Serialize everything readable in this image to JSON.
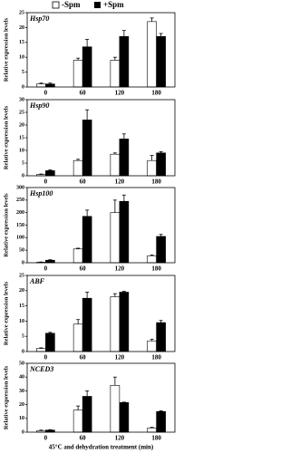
{
  "chart_data": [
    {
      "type": "bar",
      "title": "Hsp70",
      "y_label": "Relative expression levels",
      "categories": [
        "0",
        "60",
        "120",
        "180"
      ],
      "series": [
        {
          "name": "-Spm",
          "color": "#ffffff",
          "values": [
            1,
            9,
            9,
            22
          ],
          "errors": [
            0.3,
            0.7,
            1,
            1.2
          ]
        },
        {
          "name": "+Spm",
          "color": "#000000",
          "values": [
            1,
            13.5,
            17,
            17
          ],
          "errors": [
            0.3,
            2.5,
            2,
            1
          ]
        }
      ],
      "ylim": [
        0,
        25
      ],
      "yticks": [
        0,
        5,
        10,
        15,
        20,
        25
      ]
    },
    {
      "type": "bar",
      "title": "Hsp90",
      "y_label": "Relative expression levels",
      "categories": [
        "0",
        "60",
        "120",
        "180"
      ],
      "series": [
        {
          "color": "#ffffff",
          "values": [
            0.5,
            6,
            8.5,
            6
          ],
          "errors": [
            0.2,
            0.5,
            0.5,
            2
          ]
        },
        {
          "color": "#000000",
          "values": [
            2,
            22,
            14.5,
            9
          ],
          "errors": [
            0.3,
            4,
            2,
            0.5
          ]
        }
      ],
      "ylim": [
        0,
        30
      ],
      "yticks": [
        0,
        5,
        10,
        15,
        20,
        25,
        30
      ]
    },
    {
      "type": "bar",
      "title": "Hsp100",
      "y_label": "Relative expression levels",
      "categories": [
        "0",
        "60",
        "120",
        "180"
      ],
      "series": [
        {
          "color": "#ffffff",
          "values": [
            2,
            55,
            200,
            28
          ],
          "errors": [
            1,
            3,
            50,
            3
          ]
        },
        {
          "color": "#000000",
          "values": [
            10,
            185,
            245,
            105
          ],
          "errors": [
            2,
            25,
            25,
            8
          ]
        }
      ],
      "ylim": [
        0,
        300
      ],
      "yticks": [
        0,
        50,
        100,
        150,
        200,
        250,
        300
      ]
    },
    {
      "type": "bar",
      "title": "ABF",
      "y_label": "Relative expression levels",
      "categories": [
        "0",
        "60",
        "120",
        "180"
      ],
      "series": [
        {
          "color": "#ffffff",
          "values": [
            1,
            9,
            18,
            3.5
          ],
          "errors": [
            0.2,
            1.5,
            1,
            0.5
          ]
        },
        {
          "color": "#000000",
          "values": [
            6,
            17.5,
            19.5,
            9.5
          ],
          "errors": [
            0.3,
            2,
            0.3,
            0.7
          ]
        }
      ],
      "ylim": [
        0,
        25
      ],
      "yticks": [
        0,
        5,
        10,
        15,
        20,
        25
      ]
    },
    {
      "type": "bar",
      "title": "NCED3",
      "y_label": "Relative expression levels",
      "x_label": "45°C and dehydration treatment (min)",
      "categories": [
        "0",
        "60",
        "120",
        "180"
      ],
      "series": [
        {
          "color": "#ffffff",
          "values": [
            1,
            16,
            34,
            3
          ],
          "errors": [
            0.5,
            3,
            6,
            0.5
          ]
        },
        {
          "color": "#000000",
          "values": [
            1.5,
            26,
            21.5,
            15
          ],
          "errors": [
            0.3,
            4,
            0.3,
            0.5
          ]
        }
      ],
      "ylim": [
        0,
        50
      ],
      "yticks": [
        0,
        10,
        20,
        30,
        40,
        50
      ]
    }
  ]
}
